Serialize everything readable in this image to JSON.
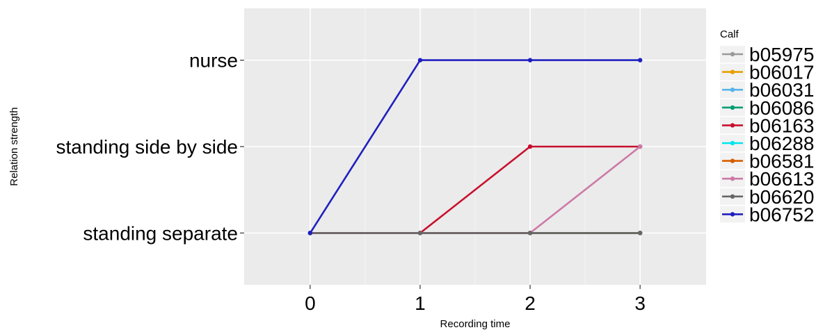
{
  "chart_data": {
    "type": "line",
    "xlabel": "Recording time",
    "ylabel": "Relation strength",
    "x": [
      0,
      1,
      2,
      3
    ],
    "x_ticks": [
      "0",
      "1",
      "2",
      "3"
    ],
    "xlim": [
      -0.6,
      3.6
    ],
    "y_categories": [
      "standing separate",
      "standing side by side",
      "nurse"
    ],
    "ylim": [
      -0.6,
      2.6
    ],
    "grid": true,
    "legend": {
      "title": "Calf",
      "placement": "right"
    },
    "series": [
      {
        "name": "b05975",
        "color": "#999999",
        "values": [
          0,
          0,
          0,
          0
        ]
      },
      {
        "name": "b06017",
        "color": "#E69F00",
        "values": [
          0,
          0,
          0,
          0
        ]
      },
      {
        "name": "b06031",
        "color": "#56B4E9",
        "values": [
          0,
          0,
          0,
          0
        ]
      },
      {
        "name": "b06086",
        "color": "#009E73",
        "values": [
          0,
          0,
          0,
          0
        ]
      },
      {
        "name": "b06163",
        "color": "#C8102E",
        "values": [
          0,
          0,
          1,
          1
        ]
      },
      {
        "name": "b06288",
        "color": "#00E5EE",
        "values": [
          0,
          0,
          0,
          0
        ]
      },
      {
        "name": "b06581",
        "color": "#D55E00",
        "values": [
          0,
          0,
          0,
          0
        ]
      },
      {
        "name": "b06613",
        "color": "#CC79A7",
        "values": [
          0,
          0,
          0,
          1
        ]
      },
      {
        "name": "b06620",
        "color": "#666666",
        "values": [
          0,
          0,
          0,
          0
        ]
      },
      {
        "name": "b06752",
        "color": "#1F1FBF",
        "values": [
          0,
          2,
          2,
          2
        ]
      }
    ]
  }
}
